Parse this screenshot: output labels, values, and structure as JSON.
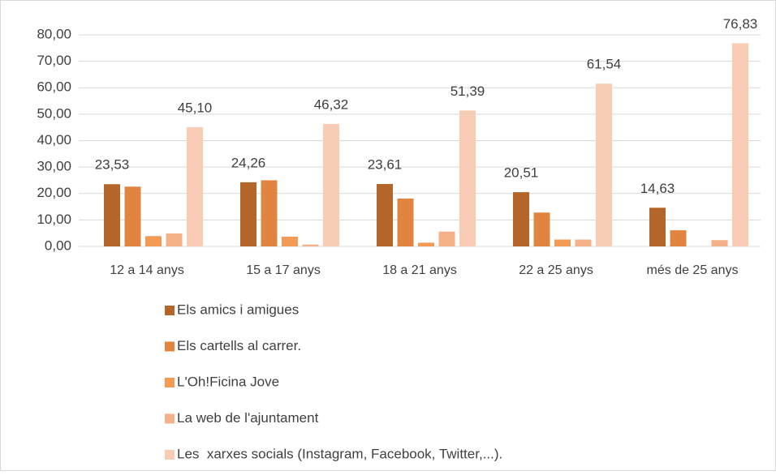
{
  "chart_data": {
    "type": "bar",
    "categories": [
      "12 a 14 anys",
      "15 a 17 anys",
      "18 a 21 anys",
      "22 a 25 anys",
      "més de 25 anys"
    ],
    "series": [
      {
        "name": "Els amics i amigues",
        "color": "#b4652a",
        "values": [
          23.53,
          24.26,
          23.61,
          20.51,
          14.63
        ],
        "value_labels": [
          "23,53",
          "24,26",
          "23,61",
          "20,51",
          "14,63"
        ]
      },
      {
        "name": "Els cartells al carrer.",
        "color": "#e0843f",
        "values": [
          22.6,
          25.0,
          18.1,
          12.8,
          6.1
        ]
      },
      {
        "name": "L'Oh!Ficina Jove",
        "color": "#f39a55",
        "values": [
          3.9,
          3.7,
          1.4,
          2.6,
          0
        ]
      },
      {
        "name": "La web de l'ajuntament",
        "color": "#f5b28a",
        "values": [
          4.9,
          0.7,
          5.6,
          2.6,
          2.4
        ]
      },
      {
        "name": "Les  xarxes socials (Instagram, Facebook, Twitter,...).",
        "color": "#f9cdb5",
        "values": [
          45.1,
          46.32,
          51.39,
          61.54,
          76.83
        ],
        "value_labels": [
          "45,10",
          "46,32",
          "51,39",
          "61,54",
          "76,83"
        ]
      }
    ],
    "ylim": [
      0,
      80
    ],
    "yticks": [
      {
        "value": 0,
        "label": "0,00"
      },
      {
        "value": 10,
        "label": "10,00"
      },
      {
        "value": 20,
        "label": "20,00"
      },
      {
        "value": 30,
        "label": "30,00"
      },
      {
        "value": 40,
        "label": "40,00"
      },
      {
        "value": 50,
        "label": "50,00"
      },
      {
        "value": 60,
        "label": "60,00"
      },
      {
        "value": 70,
        "label": "70,00"
      },
      {
        "value": 80,
        "label": "80,00"
      }
    ],
    "grid": true
  }
}
